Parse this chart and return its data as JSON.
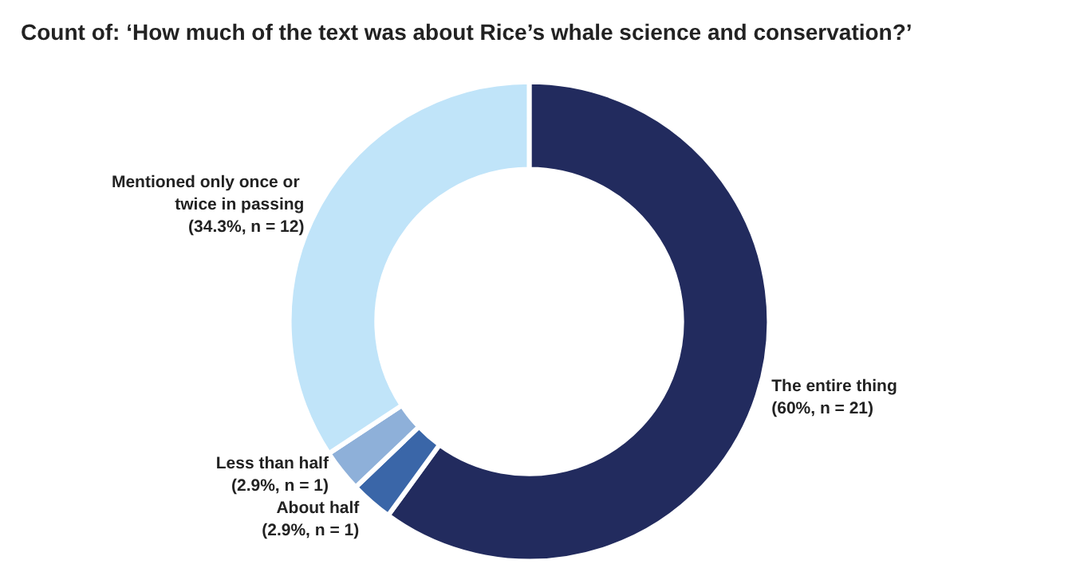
{
  "chart_data": {
    "type": "donut",
    "title": "Count of: ‘How much of the text was about Rice’s whale science and conservation?’",
    "categories": [
      "The entire thing",
      "About half",
      "Less than half",
      "Mentioned only once or twice in passing"
    ],
    "values": [
      21,
      1,
      1,
      12
    ],
    "value_labels": [
      "(60%, n = 21)",
      "(2.9%, n = 1)",
      "(2.9%, n = 1)",
      "(34.3%, n = 12)"
    ],
    "colors": [
      "#222b5e",
      "#3a66a8",
      "#8eb0d9",
      "#c0e4f9"
    ],
    "legend": false
  }
}
